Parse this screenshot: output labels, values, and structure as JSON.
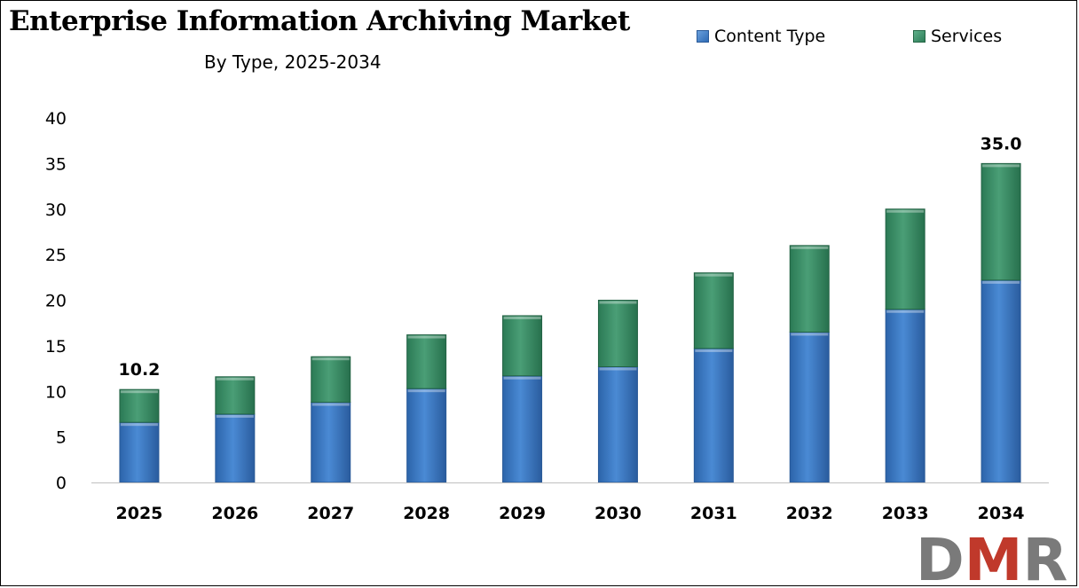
{
  "header": {
    "title": "Enterprise Information Archiving Market",
    "subtitle": "By Type, 2025-2034"
  },
  "legend": {
    "items": [
      {
        "label": "Content Type",
        "color": "#3a78c2"
      },
      {
        "label": "Services",
        "color": "#3a8c64"
      }
    ],
    "position": "top-right"
  },
  "logo": {
    "text": "DMR",
    "colors": [
      "#7a7a7a",
      "#c0392b"
    ]
  },
  "chart_data": {
    "type": "bar",
    "stacked": true,
    "categories": [
      "2025",
      "2026",
      "2027",
      "2028",
      "2029",
      "2030",
      "2031",
      "2032",
      "2033",
      "2034"
    ],
    "series": [
      {
        "name": "Content Type",
        "values": [
          6.6,
          7.5,
          8.8,
          10.3,
          11.7,
          12.7,
          14.7,
          16.5,
          19.0,
          22.2
        ],
        "color": "#3a78c2"
      },
      {
        "name": "Services",
        "values": [
          3.6,
          4.1,
          5.0,
          5.9,
          6.6,
          7.3,
          8.3,
          9.5,
          11.0,
          12.8
        ],
        "color": "#3a8c64"
      }
    ],
    "totals_labels": [
      {
        "category": "2025",
        "text": "10.2"
      },
      {
        "category": "2034",
        "text": "35.0"
      }
    ],
    "yticks": [
      0,
      5,
      10,
      15,
      20,
      25,
      30,
      35,
      40
    ],
    "ylim": [
      0,
      40
    ],
    "xlabel": "",
    "ylabel": "",
    "grid": false
  }
}
